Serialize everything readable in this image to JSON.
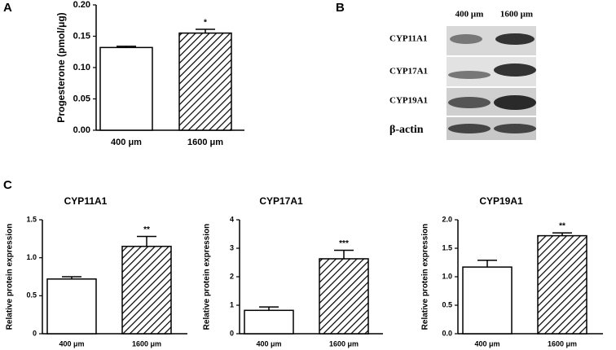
{
  "panels": [
    "A",
    "B",
    "C"
  ],
  "blot": {
    "columns": [
      "400 μm",
      "1600 μm"
    ],
    "rows": [
      "CYP11A1",
      "CYP17A1",
      "CYP19A1",
      "β-actin"
    ]
  },
  "chart_data": [
    {
      "type": "bar",
      "ylabel": "Progesterone (pmol/μg)",
      "categories": [
        "400 μm",
        "1600 μm"
      ],
      "values": [
        0.132,
        0.155
      ],
      "errors": [
        0.002,
        0.006
      ],
      "annotations": [
        null,
        "*"
      ],
      "hatch": [
        false,
        true
      ],
      "ylim": [
        0,
        0.2
      ],
      "yticks": [
        {
          "value": 0,
          "label": "0.00"
        },
        0.05,
        {
          "value": 0.1,
          "label": "0.10"
        },
        0.15,
        {
          "value": 0.2,
          "label": "0.20"
        }
      ]
    },
    {
      "type": "bar",
      "title": "CYP11A1",
      "ylabel": "Relative protein expression",
      "categories": [
        "400 μm",
        "1600 μm"
      ],
      "values": [
        0.72,
        1.15
      ],
      "errors": [
        0.03,
        0.13
      ],
      "annotations": [
        null,
        "**"
      ],
      "hatch": [
        false,
        true
      ],
      "ylim": [
        0,
        1.5
      ],
      "yticks": [
        0,
        0.5,
        {
          "value": 1,
          "label": "1.0"
        },
        1.5
      ]
    },
    {
      "type": "bar",
      "title": "CYP17A1",
      "ylabel": "Relative protein expression",
      "categories": [
        "400 μm",
        "1600 μm"
      ],
      "values": [
        0.82,
        2.63
      ],
      "errors": [
        0.12,
        0.3
      ],
      "annotations": [
        null,
        "***"
      ],
      "hatch": [
        false,
        true
      ],
      "ylim": [
        0,
        4
      ],
      "yticks": [
        0,
        1,
        2,
        3,
        4
      ]
    },
    {
      "type": "bar",
      "title": "CYP19A1",
      "ylabel": "Relative protein expression",
      "categories": [
        "400 μm",
        "1600 μm"
      ],
      "values": [
        1.17,
        1.72
      ],
      "errors": [
        0.12,
        0.05
      ],
      "annotations": [
        null,
        "**"
      ],
      "hatch": [
        false,
        true
      ],
      "ylim": [
        0,
        2
      ],
      "yticks": [
        {
          "value": 0,
          "label": "0.0"
        },
        0.5,
        {
          "value": 1,
          "label": "1.0"
        },
        1.5,
        {
          "value": 2,
          "label": "2.0"
        }
      ]
    }
  ]
}
